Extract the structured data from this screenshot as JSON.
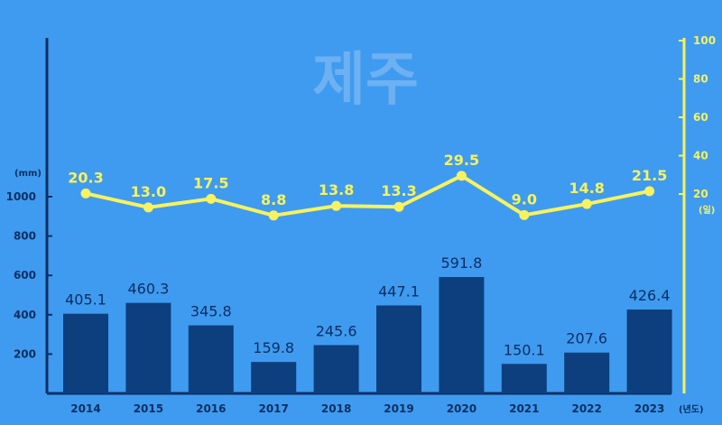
{
  "chart_data": {
    "type": "bar",
    "title": "제주",
    "categories": [
      "2014",
      "2015",
      "2016",
      "2017",
      "2018",
      "2019",
      "2020",
      "2021",
      "2022",
      "2023"
    ],
    "series": [
      {
        "type": "bar",
        "axis": "left",
        "values": [
          405.1,
          460.3,
          345.8,
          159.8,
          245.6,
          447.1,
          591.8,
          150.1,
          207.6,
          426.4
        ],
        "labels": [
          "405.1",
          "460.3",
          "345.8",
          "159.8",
          "245.6",
          "447.1",
          "591.8",
          "150.1",
          "207.6",
          "426.4"
        ]
      },
      {
        "type": "line",
        "axis": "right",
        "values": [
          20.3,
          13.0,
          17.5,
          8.8,
          13.8,
          13.3,
          29.5,
          9.0,
          14.8,
          21.5
        ],
        "labels": [
          "20.3",
          "13.0",
          "17.5",
          "8.8",
          "13.8",
          "13.3",
          "29.5",
          "9.0",
          "14.8",
          "21.5"
        ]
      }
    ],
    "y_left": {
      "unit": "(mm)",
      "ticks": [
        "1000",
        "800",
        "600",
        "400",
        "200"
      ],
      "tick_values": [
        1000,
        800,
        600,
        400,
        200
      ],
      "ylim": [
        0,
        1000
      ]
    },
    "y_right": {
      "unit": "(일)",
      "ticks": [
        "100",
        "80",
        "60",
        "40",
        "20"
      ],
      "tick_values": [
        100,
        80,
        60,
        40,
        20
      ],
      "ylim": [
        0,
        100
      ]
    },
    "x_unit": "(년도)",
    "grid": false,
    "colors": {
      "background": "#3f9bf0",
      "bar": "#0d3f7e",
      "line": "#f7f25e",
      "axis_left": "#0d2f63",
      "title": "#6db1f2"
    }
  }
}
